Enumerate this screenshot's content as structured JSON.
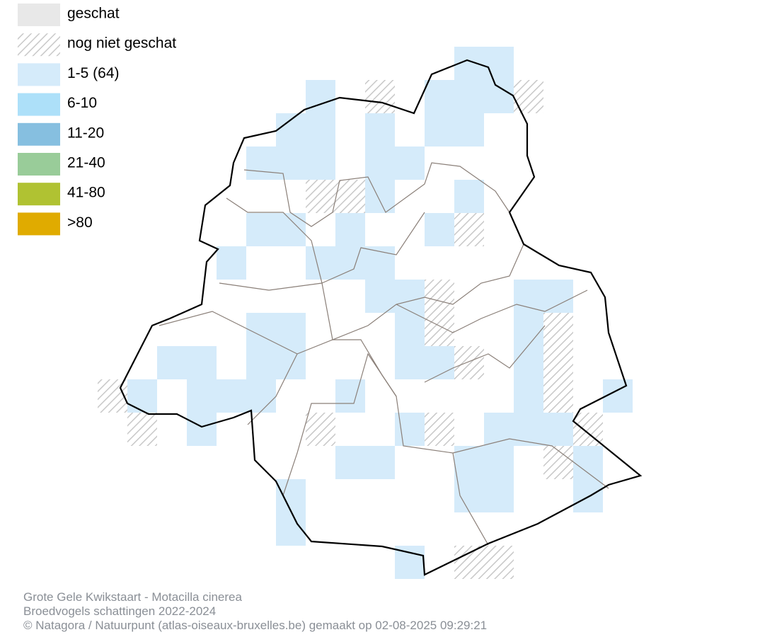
{
  "legend": [
    {
      "label": "geschat",
      "color": "#e8e8e8"
    },
    {
      "label": "nog niet geschat",
      "color": "#c8c8c8",
      "hatched": true
    },
    {
      "label": "1-5 (64)",
      "color": "#d5ebfa"
    },
    {
      "label": "6-10",
      "color": "#ade0f9"
    },
    {
      "label": "11-20",
      "color": "#86bfe0"
    },
    {
      "label": "21-40",
      "color": "#99cc99"
    },
    {
      "label": "41-80",
      "color": "#b0c232"
    },
    {
      "label": ">80",
      "color": "#e0ab00"
    }
  ],
  "footer": [
    "Grote Gele Kwikstaart - Motacilla cinerea",
    "Broedvogels schattingen 2022-2024",
    "© Natagora / Natuurpunt (atlas-oiseaux-bruxelles.be) gemaakt op 02-08-2025 09:29:21"
  ]
}
